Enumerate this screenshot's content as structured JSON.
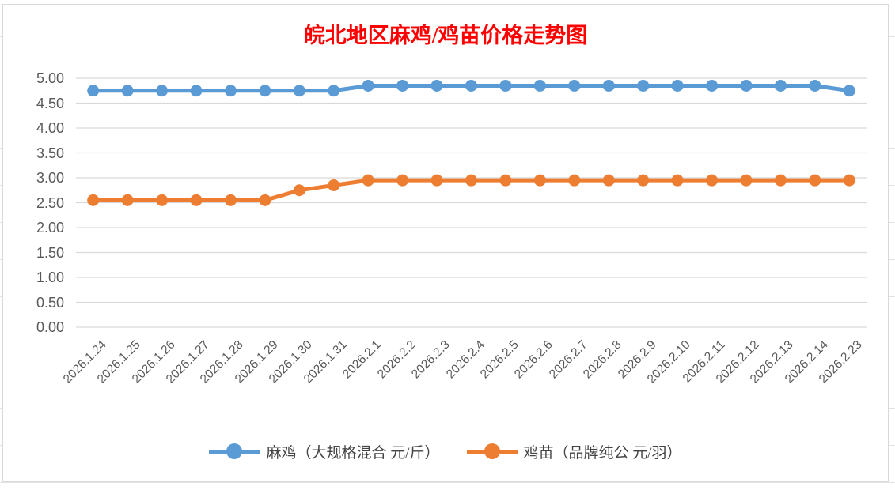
{
  "chart": {
    "title_color": "#ff0000",
    "gridline_color": "#d9d9d9",
    "axis_text_color": "#595959",
    "background_row_line_color": "#e2e2e2"
  },
  "chart_data": {
    "type": "line",
    "title": "皖北地区麻鸡/鸡苗价格走势图",
    "categories": [
      "2026.1.24",
      "2026.1.25",
      "2026.1.26",
      "2026.1.27",
      "2026.1.28",
      "2026.1.29",
      "2026.1.30",
      "2026.1.31",
      "2026.2.1",
      "2026.2.2",
      "2026.2.3",
      "2026.2.4",
      "2026.2.5",
      "2026.2.6",
      "2026.2.7",
      "2026.2.8",
      "2026.2.9",
      "2026.2.10",
      "2026.2.11",
      "2026.2.12",
      "2026.2.13",
      "2026.2.14",
      "2026.2.23"
    ],
    "series": [
      {
        "name": "麻鸡（大规格混合 元/斤）",
        "color": "#5b9bd5",
        "values": [
          4.75,
          4.75,
          4.75,
          4.75,
          4.75,
          4.75,
          4.75,
          4.75,
          4.85,
          4.85,
          4.85,
          4.85,
          4.85,
          4.85,
          4.85,
          4.85,
          4.85,
          4.85,
          4.85,
          4.85,
          4.85,
          4.85,
          4.75
        ]
      },
      {
        "name": "鸡苗（品牌纯公 元/羽）",
        "color": "#ed7d31",
        "values": [
          2.55,
          2.55,
          2.55,
          2.55,
          2.55,
          2.55,
          2.75,
          2.85,
          2.95,
          2.95,
          2.95,
          2.95,
          2.95,
          2.95,
          2.95,
          2.95,
          2.95,
          2.95,
          2.95,
          2.95,
          2.95,
          2.95,
          2.95
        ]
      }
    ],
    "xlabel": "",
    "ylabel": "",
    "ylim": [
      0,
      5
    ],
    "ytick_step": 0.5,
    "ytick_labels": [
      "0.00",
      "0.50",
      "1.00",
      "1.50",
      "2.00",
      "2.50",
      "3.00",
      "3.50",
      "4.00",
      "4.50",
      "5.00"
    ],
    "grid": true,
    "legend_position": "bottom"
  }
}
